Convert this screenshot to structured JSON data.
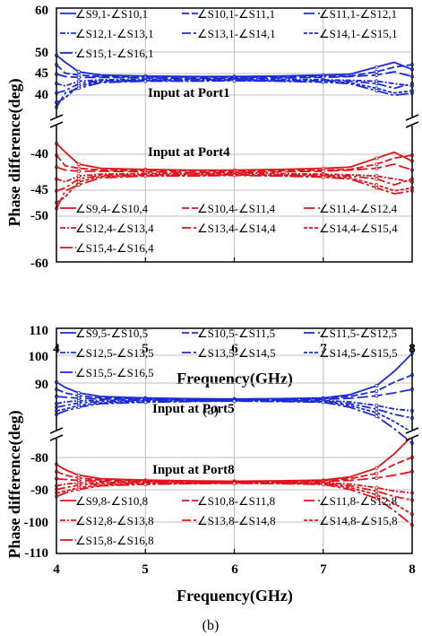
{
  "chart_data": [
    {
      "type": "line",
      "panel_label": "(a)",
      "xlabel": "Frequency(GHz)",
      "ylabel": "Phase difference(deg)",
      "xlim": [
        4,
        8
      ],
      "x_ticks": [
        "4",
        "5",
        "6",
        "7",
        "8"
      ],
      "axis_break": true,
      "upper_ylim": [
        37,
        60
      ],
      "upper_y_ticks": [
        "40",
        "45",
        "50",
        "60"
      ],
      "lower_ylim": [
        -60,
        -37
      ],
      "lower_y_ticks": [
        "-40",
        "-45",
        "-50",
        "-60"
      ],
      "grid": true,
      "annotations": [
        "Input at Port1",
        "Input at Port4"
      ],
      "legend_upper": [
        "∠S9,1-∠S10,1",
        "∠S10,1-∠S11,1",
        "∠S11,1-∠S12,1",
        "∠S12,1-∠S13,1",
        "∠S13,1-∠S14,1",
        "∠S14,1-∠S15,1",
        "∠S15,1-∠S16,1"
      ],
      "legend_lower": [
        "∠S9,4-∠S10,4",
        "∠S10,4-∠S11,4",
        "∠S11,4-∠S12,4",
        "∠S12,4-∠S13,4",
        "∠S13,4-∠S14,4",
        "∠S14,4-∠S15,4",
        "∠S15,4-∠S16,4"
      ],
      "center_upper": 45,
      "center_lower": -45,
      "x": [
        4.0,
        4.1,
        4.25,
        4.5,
        5.0,
        5.5,
        6.0,
        6.5,
        7.0,
        7.3,
        7.6,
        7.8,
        8.0
      ],
      "offsets": [
        [
          5,
          3.5,
          1.5,
          0.8,
          0.6,
          0.5,
          0.5,
          0.6,
          0.8,
          1.0,
          2.5,
          3.5,
          2.0
        ],
        [
          3,
          1.2,
          0.8,
          0.5,
          0.4,
          0.4,
          0.3,
          0.4,
          0.5,
          0.6,
          1.5,
          2.5,
          3.0
        ],
        [
          1,
          0.5,
          0.3,
          0.3,
          0.2,
          0.1,
          0.1,
          0.2,
          0.3,
          0.5,
          0.8,
          1.5,
          0.5
        ],
        [
          -1,
          -1.5,
          -0.5,
          -0.2,
          -0.1,
          -0.1,
          0.0,
          -0.1,
          -0.2,
          -0.3,
          -0.5,
          -1.0,
          -1.5
        ],
        [
          -3,
          -2.5,
          -1.0,
          -0.4,
          -0.3,
          -0.2,
          -0.2,
          -0.3,
          -0.4,
          -0.5,
          -1.0,
          -2.0,
          -1.0
        ],
        [
          -5,
          -4.0,
          -1.5,
          -0.6,
          -0.4,
          -0.4,
          -0.3,
          -0.4,
          -0.6,
          -0.8,
          -2.0,
          -3.0,
          -2.5
        ],
        [
          -6,
          -3.0,
          -2.0,
          -0.8,
          -0.5,
          -0.5,
          -0.4,
          -0.5,
          -0.7,
          -1.0,
          -2.5,
          -3.5,
          -3.0
        ]
      ],
      "upper_color": "#1a2bd6",
      "lower_color": "#e0141b"
    },
    {
      "type": "line",
      "panel_label": "(b)",
      "xlabel": "Frequency(GHz)",
      "ylabel": "Phase difference(deg)",
      "xlim": [
        4,
        8
      ],
      "x_ticks": [
        "4",
        "5",
        "6",
        "7",
        "8"
      ],
      "axis_break": true,
      "upper_ylim": [
        82,
        110
      ],
      "upper_y_ticks": [
        "90",
        "100",
        "110"
      ],
      "lower_ylim": [
        -110,
        -78
      ],
      "lower_y_ticks": [
        "-80",
        "-90",
        "-100",
        "-110"
      ],
      "grid": true,
      "annotations": [
        "Input at Port5",
        "Input at Port8"
      ],
      "legend_upper": [
        "∠S9,5-∠S10,5",
        "∠S10,5-∠S11,5",
        "∠S11,5-∠S12,5",
        "∠S12,5-∠S13,5",
        "∠S13,5-∠S14,5",
        "∠S14,5-∠S15,5",
        "∠S15,5-∠S16,5"
      ],
      "legend_lower": [
        "∠S9,8-∠S10,8",
        "∠S10,8-∠S11,8",
        "∠S11,8-∠S12,8",
        "∠S12,8-∠S13,8",
        "∠S13,8-∠S14,8",
        "∠S14,8-∠S15,8",
        "∠S15,8-∠S16,8"
      ],
      "center_upper": 90,
      "center_lower": -90,
      "x": [
        4.0,
        4.1,
        4.25,
        4.5,
        5.0,
        5.5,
        6.0,
        6.5,
        7.0,
        7.3,
        7.6,
        7.8,
        8.0
      ],
      "offsets": [
        [
          5,
          3.5,
          2.0,
          1.0,
          0.6,
          0.4,
          0.3,
          0.4,
          0.6,
          1.5,
          4.0,
          8.0,
          13.0
        ],
        [
          3,
          2.0,
          1.2,
          0.6,
          0.4,
          0.3,
          0.2,
          0.3,
          0.4,
          1.0,
          2.5,
          5.0,
          7.0
        ],
        [
          1,
          0.8,
          0.5,
          0.3,
          0.2,
          0.1,
          0.1,
          0.1,
          0.2,
          0.5,
          1.2,
          2.0,
          3.0
        ],
        [
          -1,
          -0.5,
          -0.2,
          -0.1,
          0.0,
          0.0,
          0.0,
          0.0,
          -0.1,
          -0.5,
          -1.5,
          -2.5,
          -3.0
        ],
        [
          -2,
          -1.5,
          -0.8,
          -0.4,
          -0.2,
          -0.1,
          -0.1,
          -0.2,
          -0.3,
          -1.0,
          -2.5,
          -4.0,
          -5.0
        ],
        [
          -3,
          -2.5,
          -1.5,
          -0.8,
          -0.4,
          -0.3,
          -0.2,
          -0.3,
          -0.5,
          -1.5,
          -3.5,
          -6.0,
          -9.0
        ],
        [
          -4,
          -3.0,
          -2.0,
          -1.0,
          -0.6,
          -0.4,
          -0.3,
          -0.4,
          -0.6,
          -2.0,
          -4.5,
          -8.0,
          -12.0
        ]
      ],
      "upper_color": "#1a2bd6",
      "lower_color": "#e0141b"
    }
  ]
}
